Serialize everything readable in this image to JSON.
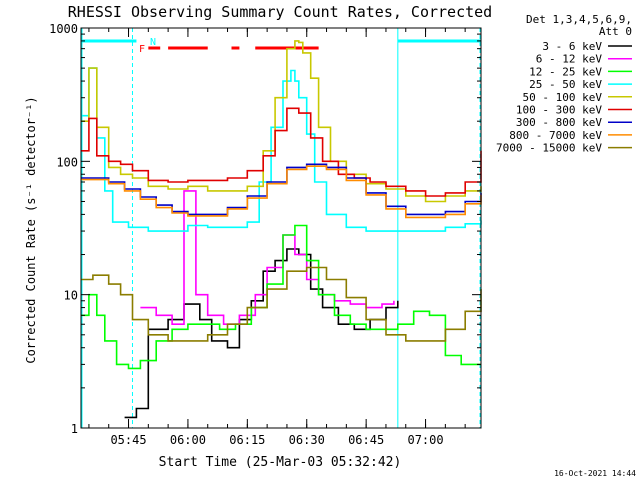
{
  "chart_data": {
    "type": "line",
    "title": "RHESSI Observing Summary Count Rates, Corrected",
    "ylabel": "Corrected Count Rate (s⁻¹ detector⁻¹)",
    "xlabel": "Start Time (25-Mar-03 05:32:42)",
    "x_start": "05:32:42",
    "x_ticks": [
      "05:45",
      "06:00",
      "06:15",
      "06:30",
      "06:45",
      "07:00"
    ],
    "y_ticks": [
      "1",
      "10",
      "100",
      "1000"
    ],
    "y_scale": "log",
    "ylim": [
      1,
      1000
    ],
    "xlim": [
      "05:33",
      "07:14"
    ],
    "legend_header": [
      "Det 1,3,4,5,6,9,",
      "Att 0"
    ],
    "legend_position": "right",
    "timestamp": "16-Oct-2021 14:44",
    "flag_labels": {
      "F": "F",
      "N": "N"
    },
    "colors": {
      "night": "#00ffff",
      "flare": "#ff0000"
    },
    "series": [
      {
        "name": "3 - 6 keV",
        "color": "#000000",
        "x": [
          "05:36",
          "05:40",
          "05:44",
          "05:47",
          "05:50",
          "05:55",
          "05:59",
          "06:03",
          "06:06",
          "06:10",
          "06:13",
          "06:16",
          "06:19",
          "06:22",
          "06:25",
          "06:28",
          "06:31",
          "06:34",
          "06:38",
          "06:42",
          "06:46",
          "06:50",
          "06:53"
        ],
        "y": [
          null,
          null,
          1.2,
          1.4,
          5.5,
          6.5,
          8.5,
          6.5,
          4.5,
          4.0,
          6.5,
          9,
          15,
          18,
          22,
          20,
          11,
          8,
          6,
          5.5,
          6.5,
          8,
          9
        ]
      },
      {
        "name": "6 - 12 keV",
        "color": "#ff00ff",
        "x": [
          "05:48",
          "05:52",
          "05:56",
          "05:59",
          "06:02",
          "06:05",
          "06:09",
          "06:13",
          "06:17",
          "06:20",
          "06:24",
          "06:27",
          "06:30",
          "06:33",
          "06:37",
          "06:41",
          "06:45",
          "06:49",
          "06:52"
        ],
        "y": [
          8,
          7,
          6,
          60,
          10,
          7,
          6,
          7,
          10,
          16,
          28,
          20,
          13,
          10,
          9,
          8.5,
          8,
          8.5,
          9
        ]
      },
      {
        "name": "12 - 25 keV",
        "color": "#00ff00",
        "x": [
          "05:33",
          "05:35",
          "05:37",
          "05:39",
          "05:42",
          "05:45",
          "05:48",
          "05:52",
          "05:56",
          "06:00",
          "06:04",
          "06:08",
          "06:12",
          "06:16",
          "06:20",
          "06:24",
          "06:27",
          "06:30",
          "06:33",
          "06:37",
          "06:41",
          "06:45",
          "06:49",
          "06:53",
          "06:57",
          "07:01",
          "07:05",
          "07:09",
          "07:12",
          "07:14"
        ],
        "y": [
          7,
          10,
          7,
          4.5,
          3.0,
          2.8,
          3.2,
          4.5,
          5.5,
          6,
          6,
          5.5,
          6,
          8,
          12,
          28,
          33,
          18,
          10,
          7,
          6,
          5.5,
          5.5,
          6,
          7.5,
          7,
          3.5,
          3,
          3,
          3
        ]
      },
      {
        "name": "25 - 50 keV",
        "color": "#00ffff",
        "x": [
          "05:33",
          "05:35",
          "05:37",
          "05:39",
          "05:41",
          "05:45",
          "05:50",
          "05:55",
          "06:00",
          "06:05",
          "06:10",
          "06:15",
          "06:18",
          "06:21",
          "06:24",
          "06:26",
          "06:27",
          "06:28",
          "06:30",
          "06:32",
          "06:35",
          "06:40",
          "06:45",
          "06:50",
          "06:55",
          "07:00",
          "07:05",
          "07:10",
          "07:14"
        ],
        "y": [
          220,
          500,
          150,
          60,
          35,
          32,
          30,
          30,
          33,
          32,
          32,
          35,
          70,
          180,
          400,
          480,
          400,
          300,
          160,
          70,
          40,
          32,
          30,
          30,
          30,
          30,
          32,
          34,
          36
        ]
      },
      {
        "name": "50 - 100 keV",
        "color": "#c8c800",
        "x": [
          "05:33",
          "05:35",
          "05:37",
          "05:40",
          "05:43",
          "05:46",
          "05:50",
          "05:55",
          "06:00",
          "06:05",
          "06:10",
          "06:15",
          "06:19",
          "06:22",
          "06:25",
          "06:27",
          "06:28",
          "06:29",
          "06:31",
          "06:33",
          "06:36",
          "06:40",
          "06:45",
          "06:50",
          "06:55",
          "07:00",
          "07:05",
          "07:10",
          "07:14"
        ],
        "y": [
          200,
          500,
          180,
          90,
          80,
          75,
          65,
          62,
          65,
          60,
          60,
          65,
          120,
          300,
          700,
          800,
          780,
          650,
          420,
          180,
          100,
          80,
          68,
          62,
          55,
          50,
          55,
          60,
          65
        ]
      },
      {
        "name": "100 - 300 keV",
        "color": "#e00000",
        "x": [
          "05:33",
          "05:35",
          "05:37",
          "05:40",
          "05:43",
          "05:46",
          "05:50",
          "05:55",
          "06:00",
          "06:05",
          "06:10",
          "06:15",
          "06:19",
          "06:22",
          "06:25",
          "06:28",
          "06:31",
          "06:34",
          "06:38",
          "06:42",
          "06:46",
          "06:50",
          "06:55",
          "07:00",
          "07:05",
          "07:10",
          "07:14"
        ],
        "y": [
          120,
          210,
          110,
          100,
          95,
          85,
          72,
          70,
          72,
          72,
          75,
          85,
          110,
          170,
          250,
          230,
          150,
          100,
          80,
          75,
          70,
          65,
          60,
          55,
          58,
          70,
          120
        ]
      },
      {
        "name": "300 - 800 keV",
        "color": "#0000c8",
        "x": [
          "05:33",
          "05:36",
          "05:40",
          "05:44",
          "05:48",
          "05:52",
          "05:56",
          "06:00",
          "06:05",
          "06:10",
          "06:15",
          "06:20",
          "06:25",
          "06:30",
          "06:35",
          "06:40",
          "06:45",
          "06:50",
          "06:55",
          "07:00",
          "07:05",
          "07:10",
          "07:14"
        ],
        "y": [
          75,
          75,
          70,
          62,
          54,
          47,
          42,
          40,
          40,
          45,
          55,
          70,
          90,
          95,
          90,
          75,
          58,
          46,
          40,
          40,
          42,
          50,
          58
        ]
      },
      {
        "name": "800 - 7000 keV",
        "color": "#ff8c00",
        "x": [
          "05:33",
          "05:36",
          "05:40",
          "05:44",
          "05:48",
          "05:52",
          "05:56",
          "06:00",
          "06:05",
          "06:10",
          "06:15",
          "06:20",
          "06:25",
          "06:30",
          "06:35",
          "06:40",
          "06:45",
          "06:50",
          "06:55",
          "07:00",
          "07:05",
          "07:10",
          "07:14"
        ],
        "y": [
          73,
          73,
          68,
          60,
          52,
          45,
          41,
          39,
          39,
          44,
          53,
          68,
          87,
          92,
          87,
          72,
          56,
          44,
          38,
          38,
          40,
          48,
          56
        ]
      },
      {
        "name": "7000 - 15000 keV",
        "color": "#8b7d00",
        "x": [
          "05:33",
          "05:36",
          "05:40",
          "05:43",
          "05:46",
          "05:50",
          "05:55",
          "06:00",
          "06:05",
          "06:10",
          "06:15",
          "06:20",
          "06:25",
          "06:30",
          "06:35",
          "06:40",
          "06:45",
          "06:50",
          "06:55",
          "07:00",
          "07:05",
          "07:10",
          "07:14"
        ],
        "y": [
          13,
          14,
          12,
          10,
          6.5,
          5.0,
          4.5,
          4.5,
          5.0,
          6.0,
          8.0,
          11,
          15,
          16,
          13,
          9.5,
          6.5,
          5.0,
          4.5,
          4.5,
          5.5,
          7.5,
          11
        ]
      }
    ],
    "flags": {
      "night_segments": [
        [
          "05:33",
          "05:47"
        ],
        [
          "06:53",
          "07:14"
        ]
      ],
      "night_boundaries": [
        "05:46",
        "06:53"
      ],
      "flare_segments": [
        [
          "05:50",
          "05:53"
        ],
        [
          "05:55",
          "06:05"
        ],
        [
          "06:11",
          "06:13"
        ],
        [
          "06:17",
          "06:33"
        ]
      ]
    }
  }
}
